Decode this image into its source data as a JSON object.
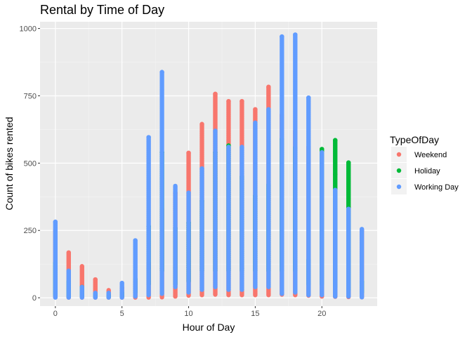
{
  "chart_data": {
    "type": "scatter",
    "title": "Rental by Time of Day",
    "xlabel": "Hour of Day",
    "ylabel": "Count of bikes rented",
    "xlim": [
      -1.15,
      24.15
    ],
    "ylim": [
      -31,
      1025
    ],
    "x_ticks": [
      0,
      5,
      10,
      15,
      20
    ],
    "y_ticks": [
      0,
      250,
      500,
      750,
      1000
    ],
    "x_tick_labels": [
      "0",
      "5",
      "10",
      "15",
      "20"
    ],
    "y_tick_labels": [
      "0",
      "250",
      "500",
      "750",
      "1000"
    ],
    "grid": true,
    "legend_position": "right",
    "legend_title": "TypeOfDay",
    "series": [
      {
        "name": "Weekend",
        "color": "#F8766D",
        "ranges": [
          {
            "hour": 0,
            "min": 2,
            "max": 250
          },
          {
            "hour": 1,
            "min": 1,
            "max": 168
          },
          {
            "hour": 2,
            "min": 1,
            "max": 117
          },
          {
            "hour": 3,
            "min": 1,
            "max": 68
          },
          {
            "hour": 4,
            "min": 1,
            "max": 28
          },
          {
            "hour": 5,
            "min": 1,
            "max": 38
          },
          {
            "hour": 6,
            "min": 1,
            "max": 60
          },
          {
            "hour": 7,
            "min": 1,
            "max": 130
          },
          {
            "hour": 8,
            "min": 2,
            "max": 330
          },
          {
            "hour": 9,
            "min": 5,
            "max": 390
          },
          {
            "hour": 10,
            "min": 8,
            "max": 538
          },
          {
            "hour": 11,
            "min": 10,
            "max": 645
          },
          {
            "hour": 12,
            "min": 12,
            "max": 757
          },
          {
            "hour": 13,
            "min": 10,
            "max": 730
          },
          {
            "hour": 14,
            "min": 10,
            "max": 730
          },
          {
            "hour": 15,
            "min": 10,
            "max": 700
          },
          {
            "hour": 16,
            "min": 10,
            "max": 783
          },
          {
            "hour": 17,
            "min": 12,
            "max": 680
          },
          {
            "hour": 18,
            "min": 10,
            "max": 620
          },
          {
            "hour": 19,
            "min": 8,
            "max": 560
          },
          {
            "hour": 20,
            "min": 5,
            "max": 430
          },
          {
            "hour": 21,
            "min": 4,
            "max": 330
          },
          {
            "hour": 22,
            "min": 3,
            "max": 338
          },
          {
            "hour": 23,
            "min": 2,
            "max": 250
          }
        ],
        "points": [
          [
            0,
            250
          ],
          [
            16,
            783
          ],
          [
            22,
            338
          ],
          [
            12,
            757
          ],
          [
            10,
            538
          ]
        ]
      },
      {
        "name": "Holiday",
        "color": "#00BA38",
        "ranges": [
          {
            "hour": 0,
            "min": 10,
            "max": 130
          },
          {
            "hour": 1,
            "min": 5,
            "max": 60
          },
          {
            "hour": 2,
            "min": 5,
            "max": 40
          },
          {
            "hour": 3,
            "min": 3,
            "max": 15
          },
          {
            "hour": 4,
            "min": 3,
            "max": 10
          },
          {
            "hour": 5,
            "min": 5,
            "max": 20
          },
          {
            "hour": 6,
            "min": 20,
            "max": 70
          },
          {
            "hour": 7,
            "min": 50,
            "max": 265
          },
          {
            "hour": 8,
            "min": 100,
            "max": 540
          },
          {
            "hour": 9,
            "min": 50,
            "max": 260
          },
          {
            "hour": 10,
            "min": 60,
            "max": 280
          },
          {
            "hour": 11,
            "min": 100,
            "max": 360
          },
          {
            "hour": 12,
            "min": 100,
            "max": 540
          },
          {
            "hour": 13,
            "min": 100,
            "max": 565
          },
          {
            "hour": 14,
            "min": 100,
            "max": 450
          },
          {
            "hour": 15,
            "min": 100,
            "max": 380
          },
          {
            "hour": 16,
            "min": 100,
            "max": 420
          },
          {
            "hour": 17,
            "min": 100,
            "max": 590
          },
          {
            "hour": 18,
            "min": 100,
            "max": 560
          },
          {
            "hour": 19,
            "min": 50,
            "max": 140
          },
          {
            "hour": 20,
            "min": 50,
            "max": 552
          },
          {
            "hour": 21,
            "min": 40,
            "max": 585
          },
          {
            "hour": 22,
            "min": 30,
            "max": 502
          },
          {
            "hour": 23,
            "min": 20,
            "max": 60
          }
        ],
        "points": [
          [
            20,
            552
          ],
          [
            21,
            585
          ],
          [
            21,
            458
          ],
          [
            22,
            502
          ],
          [
            13,
            565
          ],
          [
            8,
            540
          ],
          [
            17,
            590
          ],
          [
            7,
            265
          ]
        ]
      },
      {
        "name": "Working Day",
        "color": "#619CFF",
        "ranges": [
          {
            "hour": 0,
            "min": 1,
            "max": 282
          },
          {
            "hour": 1,
            "min": 1,
            "max": 100
          },
          {
            "hour": 2,
            "min": 1,
            "max": 40
          },
          {
            "hour": 3,
            "min": 1,
            "max": 18
          },
          {
            "hour": 4,
            "min": 1,
            "max": 18
          },
          {
            "hour": 5,
            "min": 1,
            "max": 55
          },
          {
            "hour": 6,
            "min": 5,
            "max": 213
          },
          {
            "hour": 7,
            "min": 10,
            "max": 596
          },
          {
            "hour": 8,
            "min": 15,
            "max": 838
          },
          {
            "hour": 9,
            "min": 40,
            "max": 415
          },
          {
            "hour": 10,
            "min": 20,
            "max": 390
          },
          {
            "hour": 11,
            "min": 30,
            "max": 480
          },
          {
            "hour": 12,
            "min": 40,
            "max": 620
          },
          {
            "hour": 13,
            "min": 30,
            "max": 560
          },
          {
            "hour": 14,
            "min": 30,
            "max": 560
          },
          {
            "hour": 15,
            "min": 40,
            "max": 650
          },
          {
            "hour": 16,
            "min": 40,
            "max": 700
          },
          {
            "hour": 17,
            "min": 15,
            "max": 970
          },
          {
            "hour": 18,
            "min": 20,
            "max": 977
          },
          {
            "hour": 19,
            "min": 10,
            "max": 743
          },
          {
            "hour": 20,
            "min": 10,
            "max": 540
          },
          {
            "hour": 21,
            "min": 5,
            "max": 400
          },
          {
            "hour": 22,
            "min": 5,
            "max": 330
          },
          {
            "hour": 23,
            "min": 2,
            "max": 255
          }
        ],
        "points": [
          [
            0,
            282
          ],
          [
            19,
            743
          ],
          [
            17,
            970
          ],
          [
            18,
            977
          ],
          [
            8,
            838
          ],
          [
            7,
            596
          ]
        ]
      }
    ]
  }
}
